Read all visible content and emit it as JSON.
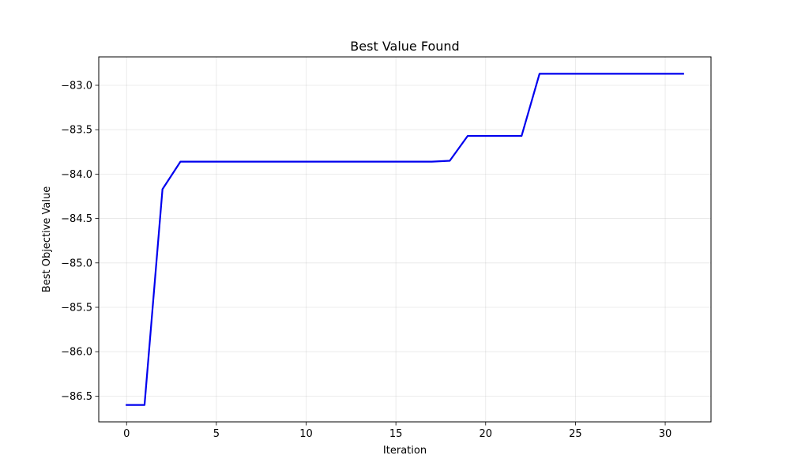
{
  "chart_data": {
    "type": "line",
    "title": "Best Value Found",
    "xlabel": "Iteration",
    "ylabel": "Best Objective Value",
    "xlim": [
      -1.55,
      32.55
    ],
    "ylim": [
      -86.79,
      -82.68
    ],
    "x_ticks": [
      0,
      5,
      10,
      15,
      20,
      25,
      30
    ],
    "x_tick_labels": [
      "0",
      "5",
      "10",
      "15",
      "20",
      "25",
      "30"
    ],
    "y_ticks": [
      -86.5,
      -86.0,
      -85.5,
      -85.0,
      -84.5,
      -84.0,
      -83.5,
      -83.0
    ],
    "y_tick_labels": [
      "−86.5",
      "−86.0",
      "−85.5",
      "−85.0",
      "−84.5",
      "−84.0",
      "−83.5",
      "−83.0"
    ],
    "grid": true,
    "series": [
      {
        "color": "#0000ee",
        "x": [
          0,
          1,
          2,
          3,
          4,
          5,
          6,
          7,
          8,
          9,
          10,
          11,
          12,
          13,
          14,
          15,
          16,
          17,
          18,
          19,
          20,
          21,
          22,
          23,
          24,
          25,
          26,
          27,
          28,
          29,
          30,
          31
        ],
        "y": [
          -86.6,
          -86.6,
          -84.17,
          -83.86,
          -83.86,
          -83.86,
          -83.86,
          -83.86,
          -83.86,
          -83.86,
          -83.86,
          -83.86,
          -83.86,
          -83.86,
          -83.86,
          -83.86,
          -83.86,
          -83.86,
          -83.85,
          -83.57,
          -83.57,
          -83.57,
          -83.57,
          -82.87,
          -82.87,
          -82.87,
          -82.87,
          -82.87,
          -82.87,
          -82.87,
          -82.87,
          -82.87
        ]
      }
    ]
  }
}
